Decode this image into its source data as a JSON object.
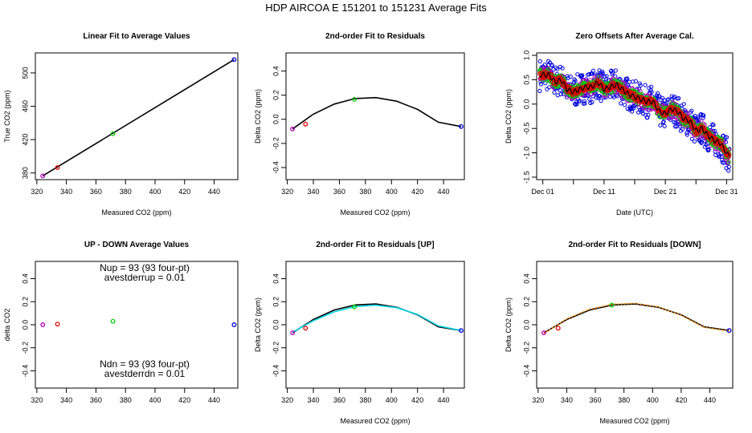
{
  "figure_title": "HDP   AIRCOA E   151201 to 151231   Average Fits",
  "colors": {
    "axis": "#000000",
    "purple": "#b400b4",
    "red": "#e00000",
    "green": "#00cc00",
    "blue": "#0000dd",
    "cyan": "#00d8e8",
    "orange": "#ff8c00",
    "magenta": "#cc00cc"
  },
  "chart_data": [
    {
      "id": "p1",
      "type": "line",
      "title": "Linear Fit to Average Values",
      "xlabel": "Measured CO2 (ppm)",
      "ylabel": "True CO2 (ppm)",
      "xlim": [
        319,
        456
      ],
      "ylim": [
        372,
        524
      ],
      "xticks": [
        320,
        340,
        360,
        380,
        400,
        420,
        440
      ],
      "yticks": [
        380,
        420,
        460,
        500
      ],
      "series": [
        {
          "name": "fit",
          "kind": "line",
          "color": "#000000",
          "x": [
            324,
            453.5
          ],
          "y": [
            376.5,
            516
          ]
        },
        {
          "name": "tank1",
          "kind": "points",
          "color": "#b400b4",
          "x": [
            324
          ],
          "y": [
            376.5
          ]
        },
        {
          "name": "tank2",
          "kind": "points",
          "color": "#e00000",
          "x": [
            334
          ],
          "y": [
            386.5
          ]
        },
        {
          "name": "tank3",
          "kind": "points",
          "color": "#00cc00",
          "x": [
            371.5
          ],
          "y": [
            427
          ]
        },
        {
          "name": "tank4",
          "kind": "points",
          "color": "#0000dd",
          "x": [
            453.5
          ],
          "y": [
            516
          ]
        }
      ]
    },
    {
      "id": "p2",
      "type": "line",
      "title": "2nd-order Fit to Residuals",
      "xlabel": "Measured CO2 (ppm)",
      "ylabel": "Delta CO2 (ppm)",
      "xlim": [
        319,
        456
      ],
      "ylim": [
        -0.5,
        0.55
      ],
      "xticks": [
        320,
        340,
        360,
        380,
        400,
        420,
        440
      ],
      "yticks": [
        -0.4,
        -0.2,
        0.0,
        0.2,
        0.4
      ],
      "series": [
        {
          "name": "fit",
          "kind": "line",
          "color": "#000000",
          "x": [
            324,
            340,
            356,
            372,
            388,
            404,
            420,
            436,
            453.5
          ],
          "y": [
            -0.08,
            0.042,
            0.126,
            0.172,
            0.18,
            0.15,
            0.082,
            -0.024,
            -0.06
          ]
        },
        {
          "name": "tank1",
          "kind": "points",
          "color": "#b400b4",
          "x": [
            324
          ],
          "y": [
            -0.08
          ]
        },
        {
          "name": "tank2",
          "kind": "points",
          "color": "#e00000",
          "x": [
            334
          ],
          "y": [
            -0.04
          ]
        },
        {
          "name": "tank3",
          "kind": "points",
          "color": "#00cc00",
          "x": [
            371.5
          ],
          "y": [
            0.165
          ]
        },
        {
          "name": "tank4",
          "kind": "points",
          "color": "#0000dd",
          "x": [
            453.5
          ],
          "y": [
            -0.06
          ]
        }
      ]
    },
    {
      "id": "p3",
      "type": "scatter",
      "title": "Zero Offsets After Average Cal.",
      "xlabel": "Date (UTC)",
      "ylabel": "Delta CO2 (ppm)",
      "xlim": [
        0,
        32
      ],
      "ylim": [
        -1.55,
        1.05
      ],
      "xticks": [
        1,
        11,
        21,
        31
      ],
      "xticklabels": [
        "Dec 01",
        "Dec 11",
        "Dec 21",
        "Dec 31"
      ],
      "xminorticks": [
        6,
        16,
        26
      ],
      "yticks": [
        -1.5,
        -1.0,
        -0.5,
        0.0,
        0.5,
        1.0
      ],
      "trend": {
        "day": [
          0.5,
          2,
          3,
          4,
          5,
          6,
          7,
          8,
          9,
          10,
          11,
          12,
          13,
          14,
          15,
          16,
          17,
          18,
          19,
          20,
          21,
          22,
          23,
          24,
          25,
          26,
          27,
          28,
          29,
          30,
          31.5
        ],
        "value": [
          0.6,
          0.6,
          0.45,
          0.5,
          0.3,
          0.25,
          0.3,
          0.35,
          0.35,
          0.45,
          0.3,
          0.35,
          0.4,
          0.3,
          0.2,
          0.15,
          0.1,
          0.05,
          0.05,
          -0.15,
          -0.2,
          -0.1,
          -0.15,
          -0.3,
          -0.35,
          -0.55,
          -0.5,
          -0.65,
          -0.75,
          -0.8,
          -1.1
        ]
      },
      "series": [
        {
          "name": "blue",
          "color": "#0000dd",
          "spread": 0.33
        },
        {
          "name": "purple",
          "color": "#b400b4",
          "spread": 0.16
        },
        {
          "name": "green",
          "color": "#00cc00",
          "spread": 0.12
        },
        {
          "name": "red",
          "color": "#e00000",
          "spread": 0.07
        },
        {
          "name": "mean",
          "color": "#000000",
          "spread": 0.0
        }
      ]
    },
    {
      "id": "p4",
      "type": "scatter",
      "title": "UP - DOWN Average Values",
      "xlabel": "",
      "ylabel": "delta CO2",
      "xlim": [
        319,
        456
      ],
      "ylim": [
        -0.55,
        0.55
      ],
      "xticks": [
        320,
        340,
        360,
        380,
        400,
        420,
        440
      ],
      "yticks": [
        -0.4,
        -0.2,
        0.0,
        0.2,
        0.4
      ],
      "annotations": [
        "Nup = 93 (93 four-pt)",
        "avestderrup =  0.01",
        "Ndn = 93 (93 four-pt)",
        "avestderrdn =  0.01"
      ],
      "series": [
        {
          "name": "tank1",
          "kind": "points",
          "color": "#b400b4",
          "x": [
            324
          ],
          "y": [
            0.0
          ]
        },
        {
          "name": "tank2",
          "kind": "points",
          "color": "#e00000",
          "x": [
            334
          ],
          "y": [
            0.005
          ]
        },
        {
          "name": "tank3",
          "kind": "points",
          "color": "#00cc00",
          "x": [
            371.5
          ],
          "y": [
            0.03
          ]
        },
        {
          "name": "tank4",
          "kind": "points",
          "color": "#0000dd",
          "x": [
            453.5
          ],
          "y": [
            0.0
          ]
        }
      ]
    },
    {
      "id": "p5",
      "type": "line",
      "title": "2nd-order Fit to Residuals [UP]",
      "xlabel": "Measured CO2 (ppm)",
      "ylabel": "Delta CO2 (ppm)",
      "xlim": [
        319,
        456
      ],
      "ylim": [
        -0.55,
        0.55
      ],
      "xticks": [
        320,
        340,
        360,
        380,
        400,
        420,
        440
      ],
      "yticks": [
        -0.4,
        -0.2,
        0.0,
        0.2,
        0.4
      ],
      "series": [
        {
          "name": "fit",
          "kind": "line",
          "color": "#000000",
          "x": [
            324,
            340,
            356,
            372,
            388,
            404,
            420,
            436,
            453.5
          ],
          "y": [
            -0.07,
            0.045,
            0.128,
            0.172,
            0.18,
            0.152,
            0.086,
            -0.018,
            -0.05
          ]
        },
        {
          "name": "fit-up",
          "kind": "line",
          "color": "#00d8e8",
          "x": [
            324,
            340,
            356,
            372,
            388,
            404,
            420,
            436,
            453.5
          ],
          "y": [
            -0.065,
            0.035,
            0.112,
            0.158,
            0.17,
            0.148,
            0.09,
            -0.01,
            -0.05
          ]
        },
        {
          "name": "tank1",
          "kind": "points",
          "color": "#b400b4",
          "x": [
            324
          ],
          "y": [
            -0.07
          ]
        },
        {
          "name": "tank2",
          "kind": "points",
          "color": "#e00000",
          "x": [
            334
          ],
          "y": [
            -0.03
          ]
        },
        {
          "name": "tank3",
          "kind": "points",
          "color": "#00cc00",
          "x": [
            371.5
          ],
          "y": [
            0.155
          ]
        },
        {
          "name": "tank4",
          "kind": "points",
          "color": "#0000dd",
          "x": [
            453.5
          ],
          "y": [
            -0.05
          ]
        }
      ]
    },
    {
      "id": "p6",
      "type": "line",
      "title": "2nd-order Fit to Residuals [DOWN]",
      "xlabel": "Measured CO2 (ppm)",
      "ylabel": "Delta CO2 (ppm)",
      "xlim": [
        319,
        456
      ],
      "ylim": [
        -0.55,
        0.55
      ],
      "xticks": [
        320,
        340,
        360,
        380,
        400,
        420,
        440
      ],
      "yticks": [
        -0.4,
        -0.2,
        0.0,
        0.2,
        0.4
      ],
      "series": [
        {
          "name": "fit",
          "kind": "line",
          "color": "#000000",
          "x": [
            324,
            340,
            356,
            372,
            388,
            404,
            420,
            436,
            453.5
          ],
          "y": [
            -0.07,
            0.045,
            0.128,
            0.172,
            0.18,
            0.152,
            0.086,
            -0.018,
            -0.05
          ]
        },
        {
          "name": "fit-down",
          "kind": "dashed",
          "color": "#ff8c00",
          "x": [
            324,
            340,
            356,
            372,
            388,
            404,
            420,
            436,
            453.5
          ],
          "y": [
            -0.075,
            0.05,
            0.135,
            0.178,
            0.185,
            0.155,
            0.082,
            -0.022,
            -0.055
          ]
        },
        {
          "name": "tank1",
          "kind": "points",
          "color": "#b400b4",
          "x": [
            324
          ],
          "y": [
            -0.07
          ]
        },
        {
          "name": "tank2",
          "kind": "points",
          "color": "#e00000",
          "x": [
            334
          ],
          "y": [
            -0.03
          ]
        },
        {
          "name": "tank3",
          "kind": "points",
          "color": "#00cc00",
          "x": [
            371.5
          ],
          "y": [
            0.17
          ]
        },
        {
          "name": "tank4",
          "kind": "points",
          "color": "#0000dd",
          "x": [
            453.5
          ],
          "y": [
            -0.05
          ]
        }
      ]
    }
  ]
}
